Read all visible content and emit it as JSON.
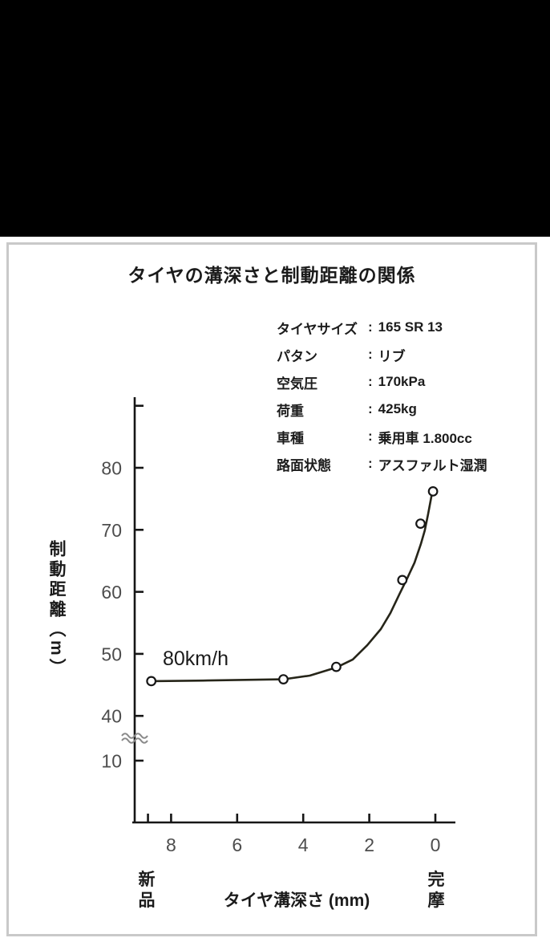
{
  "colors": {
    "top_band": "#000000",
    "panel_border": "#c9c9c9",
    "panel_background": "#ffffff",
    "axis": "#161616",
    "curve": "#262519",
    "tick_label": "#4d4d4d",
    "text": "#1b1b1b",
    "break_mark": "#8a8a8a",
    "point_fill": "#ffffff"
  },
  "title": "タイヤの溝深さと制動距離の関係",
  "specs": {
    "separator": ":",
    "rows": [
      {
        "label": "タイヤサイズ",
        "value": "165 SR 13"
      },
      {
        "label": "パタン",
        "value": "リブ"
      },
      {
        "label": "空気圧",
        "value": "170kPa"
      },
      {
        "label": "荷重",
        "value": "425kg"
      },
      {
        "label": "車種",
        "value": "乗用車 1.800cc"
      },
      {
        "label": "路面状態",
        "value": "アスファルト湿潤"
      }
    ]
  },
  "chart_data": {
    "type": "scatter",
    "title": "タイヤの溝深さと制動距離の関係",
    "xlabel": "タイヤ溝深さ (mm)",
    "ylabel": "制動距離（m）",
    "annotation": "80km/h",
    "grid": false,
    "x_axis": {
      "reversed": true,
      "range_mm": [
        9.2,
        -0.6
      ],
      "ticks": [
        {
          "value": 8.7,
          "label": ""
        },
        {
          "value": 8,
          "label": "8"
        },
        {
          "value": 6,
          "label": "6"
        },
        {
          "value": 4,
          "label": "4"
        },
        {
          "value": 2,
          "label": "2"
        },
        {
          "value": 0,
          "label": "0"
        }
      ],
      "left_end_label": "新品",
      "right_end_label": "完摩"
    },
    "y_axis": {
      "ticks": [
        {
          "value": 90,
          "label": ""
        },
        {
          "value": 80,
          "label": "80"
        },
        {
          "value": 70,
          "label": "70"
        },
        {
          "value": 60,
          "label": "60"
        },
        {
          "value": 50,
          "label": "50"
        },
        {
          "value": 40,
          "label": "40"
        },
        {
          "value": 10,
          "label": "10",
          "below_break": true
        }
      ],
      "break_between": [
        40,
        10
      ]
    },
    "points": [
      [
        8.6,
        45.6
      ],
      [
        4.6,
        45.9
      ],
      [
        3.0,
        47.9
      ],
      [
        1.0,
        61.9
      ],
      [
        0.45,
        71.0
      ],
      [
        0.07,
        76.2
      ]
    ],
    "curve": [
      [
        8.6,
        45.6
      ],
      [
        6.9,
        45.7
      ],
      [
        4.6,
        45.9
      ],
      [
        3.8,
        46.5
      ],
      [
        3.0,
        47.8
      ],
      [
        2.5,
        49.1
      ],
      [
        2.06,
        51.4
      ],
      [
        1.65,
        54.0
      ],
      [
        1.36,
        56.6
      ],
      [
        1.09,
        59.6
      ],
      [
        0.85,
        62.2
      ],
      [
        0.63,
        64.7
      ],
      [
        0.44,
        67.7
      ],
      [
        0.32,
        69.9
      ],
      [
        0.22,
        72.5
      ],
      [
        0.12,
        75.4
      ],
      [
        0.07,
        76.1
      ]
    ]
  }
}
